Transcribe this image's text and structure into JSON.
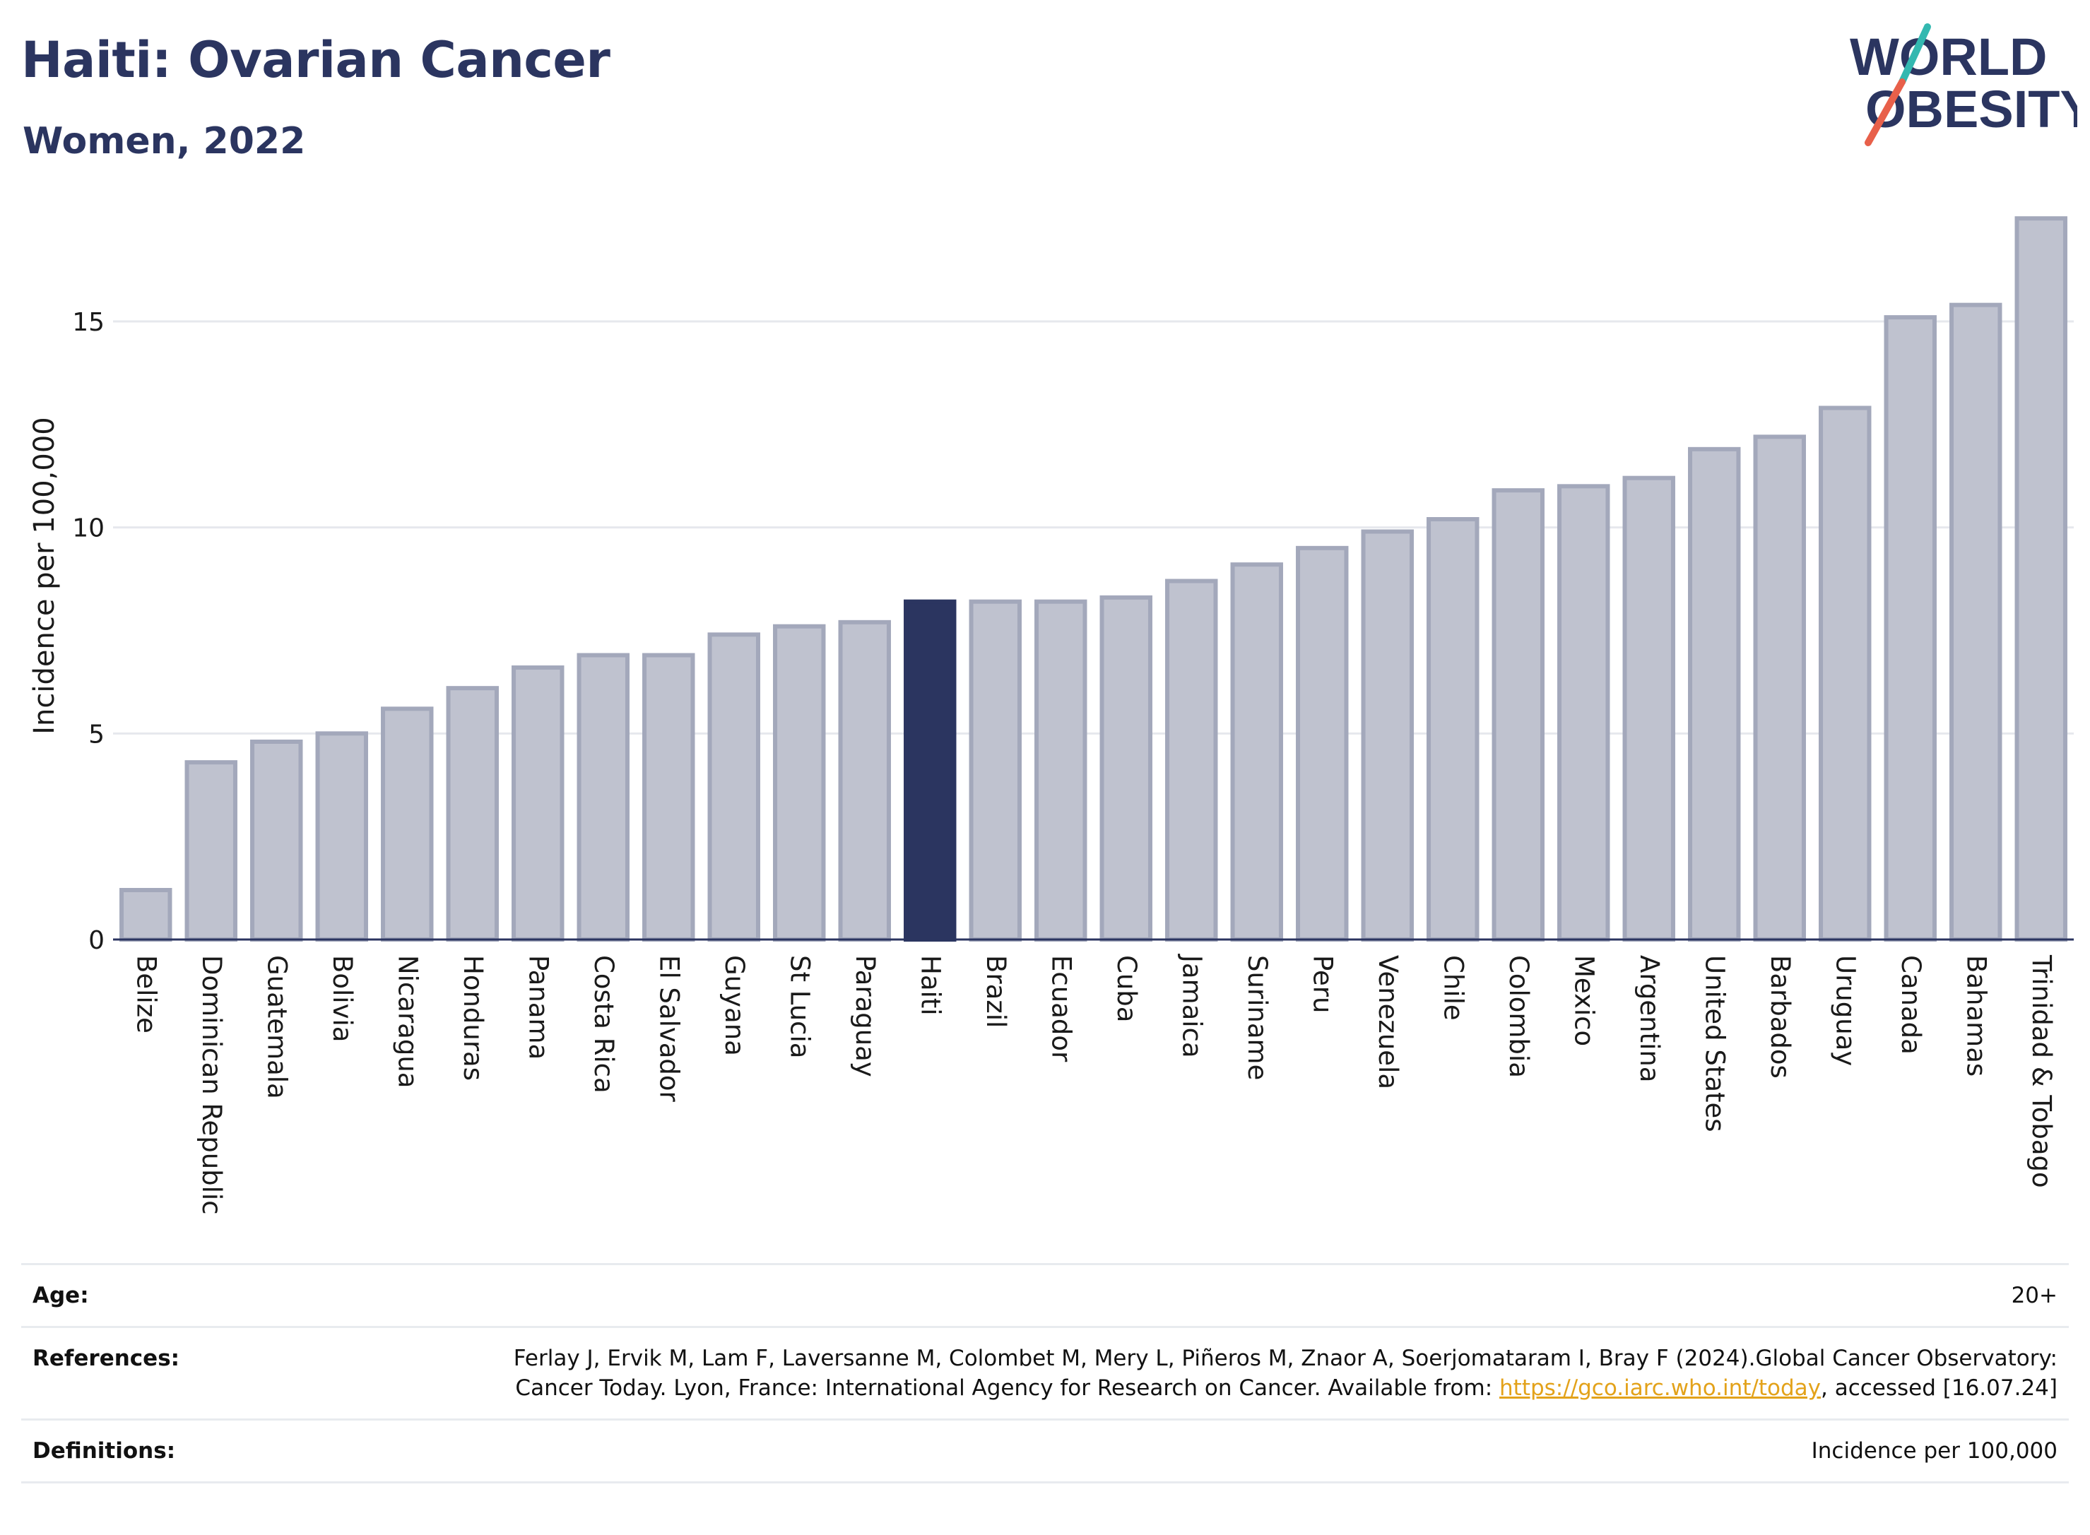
{
  "header": {
    "title": "Haiti: Ovarian Cancer",
    "subtitle": "Women, 2022"
  },
  "logo": {
    "line1": "WORLD",
    "line2": "OBESITY",
    "colors": {
      "navy": "#2b3560",
      "teal": "#33b8b0",
      "coral": "#e8604a"
    }
  },
  "chart_data": {
    "type": "bar",
    "ylabel": "Incidence per 100,000",
    "xlabel": "",
    "ylim": [
      0,
      18
    ],
    "yticks": [
      0,
      5,
      10,
      15
    ],
    "grid": true,
    "highlight": "Haiti",
    "colors": {
      "highlight": "#2b3560",
      "default_fill": "#bfc2cf",
      "default_stroke": "#a3a8bb"
    },
    "categories": [
      "Belize",
      "Dominican Republic",
      "Guatemala",
      "Bolivia",
      "Nicaragua",
      "Honduras",
      "Panama",
      "Costa Rica",
      "El Salvador",
      "Guyana",
      "St Lucia",
      "Paraguay",
      "Haiti",
      "Brazil",
      "Ecuador",
      "Cuba",
      "Jamaica",
      "Suriname",
      "Peru",
      "Venezuela",
      "Chile",
      "Colombia",
      "Mexico",
      "Argentina",
      "United States",
      "Barbados",
      "Uruguay",
      "Canada",
      "Bahamas",
      "Trinidad & Tobago"
    ],
    "values": [
      1.2,
      4.3,
      4.8,
      5.0,
      5.6,
      6.1,
      6.6,
      6.9,
      6.9,
      7.4,
      7.6,
      7.7,
      8.2,
      8.2,
      8.2,
      8.3,
      8.7,
      9.1,
      9.5,
      9.9,
      10.2,
      10.9,
      11.0,
      11.2,
      11.9,
      12.2,
      12.9,
      15.1,
      15.4,
      17.5
    ]
  },
  "meta": {
    "age": {
      "label": "Age:",
      "value": "20+"
    },
    "references": {
      "label": "References:",
      "text_before": "Ferlay J, Ervik M, Lam F, Laversanne M, Colombet M, Mery L, Piñeros M, Znaor A, Soerjomataram I, Bray F (2024).Global Cancer Observatory: Cancer Today. Lyon, France: International Agency for Research on Cancer. Available from: ",
      "link": "https://gco.iarc.who.int/today",
      "text_after": ", accessed [16.07.24]"
    },
    "definitions": {
      "label": "Definitions:",
      "value": "Incidence per 100,000"
    }
  }
}
